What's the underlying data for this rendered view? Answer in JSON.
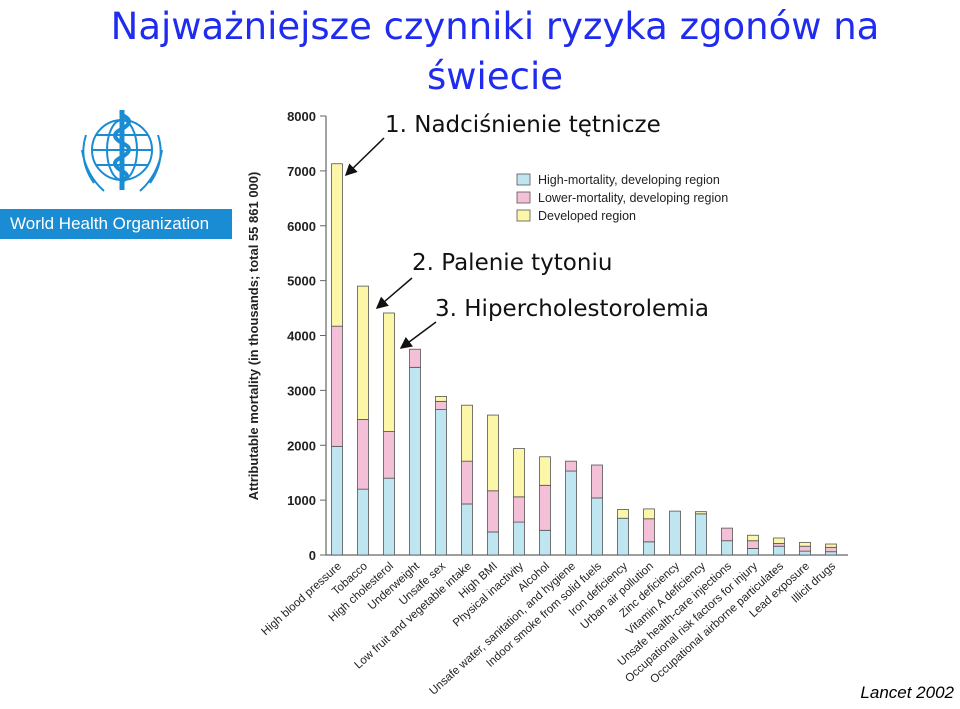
{
  "title": "Najważniejsze czynniki ryzyka zgonów na świecie",
  "logo": {
    "icon": "who-emblem-icon",
    "organization": "World Health Organization"
  },
  "annotations": [
    "1. Nadciśnienie tętnicze",
    "2. Palenie tytoniu",
    "3. Hipercholestorolemia"
  ],
  "source": "Lancet 2002",
  "colors": {
    "high_mortality": "#bfe6f0",
    "lower_mortality": "#f4c0d8",
    "developed": "#fbf6a8",
    "title": "#1f2cf0",
    "who_blue": "#1a8cd3"
  },
  "chart_data": {
    "type": "bar",
    "stacked": true,
    "ylabel": "Attributable mortality (in thousands; total 55 861 000)",
    "ylim": [
      0,
      8000
    ],
    "yticks": [
      0,
      1000,
      2000,
      3000,
      4000,
      5000,
      6000,
      7000,
      8000
    ],
    "grid": false,
    "legend_position": "top-right",
    "categories": [
      "High blood pressure",
      "Tobacco",
      "High cholesterol",
      "Underweight",
      "Unsafe sex",
      "Low fruit and vegetable intake",
      "High BMI",
      "Physical inactivity",
      "Alcohol",
      "Unsafe water, sanitation, and hygiene",
      "Indoor smoke from solid fuels",
      "Iron deficiency",
      "Urban air pollution",
      "Zinc deficiency",
      "Vitamin A deficiency",
      "Unsafe health-care injections",
      "Occupational risk factors for injury",
      "Occupational airborne particulates",
      "Lead exposure",
      "Illicit drugs"
    ],
    "series": [
      {
        "name": "High-mortality, developing region",
        "color": "#bfe6f0",
        "values": [
          1980,
          1200,
          1400,
          3420,
          2650,
          930,
          420,
          600,
          450,
          1530,
          1040,
          670,
          240,
          800,
          750,
          260,
          120,
          160,
          70,
          60
        ]
      },
      {
        "name": "Lower-mortality, developing region",
        "color": "#f4c0d8",
        "values": [
          2190,
          1270,
          850,
          330,
          150,
          780,
          750,
          460,
          820,
          180,
          600,
          0,
          420,
          0,
          0,
          230,
          140,
          50,
          90,
          80
        ]
      },
      {
        "name": "Developed region",
        "color": "#fbf6a8",
        "values": [
          2960,
          2430,
          2160,
          0,
          90,
          1020,
          1380,
          880,
          520,
          0,
          0,
          160,
          180,
          0,
          40,
          0,
          100,
          100,
          70,
          60
        ]
      }
    ]
  }
}
